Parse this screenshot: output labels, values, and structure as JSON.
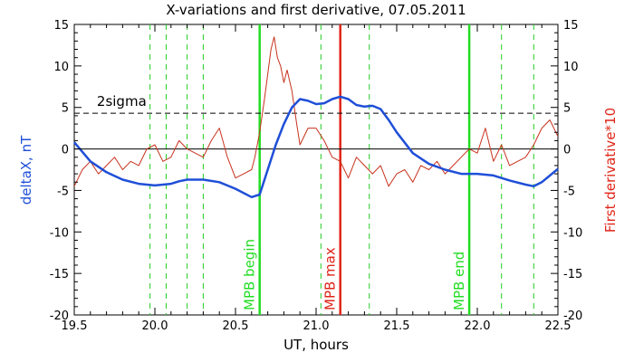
{
  "chart_data": {
    "type": "line",
    "title": "X-variations and first derivative, 07.05.2011",
    "xlabel": "UT, hours",
    "ylabel_left": "deltaX, nT",
    "ylabel_right": "First derivative*10",
    "xlim": [
      19.5,
      22.5
    ],
    "ylim": [
      -20,
      15
    ],
    "x_ticks": [
      "19.5",
      "20.0",
      "20.5",
      "21.0",
      "21.5",
      "22.0",
      "22.5"
    ],
    "y_ticks_left": [
      "15",
      "10",
      "5",
      "0",
      "-5",
      "-10",
      "-15",
      "-20"
    ],
    "y_ticks_right": [
      "15",
      "10",
      "5",
      "0",
      "-5",
      "-10",
      "-15",
      "-20"
    ],
    "colors": {
      "deltaX": "#1f4fd8",
      "derivative": "#c8321e",
      "mpb_boundary": "#22dd22",
      "mpb_max": "#e02418",
      "secondary_lines": "#22cc22",
      "zero_line": "#000000",
      "sigma_line": "#000000",
      "left_axis_label": "#1f4fd8",
      "right_axis_label": "#e02418"
    },
    "horizontal_lines": {
      "zero": 0,
      "sigma": {
        "value": 4.3,
        "label": "2sigma"
      }
    },
    "vertical_lines_solid": [
      {
        "x": 20.65,
        "label": "MPB begin",
        "kind": "mpb_boundary"
      },
      {
        "x": 21.15,
        "label": "MPB max",
        "kind": "mpb_max"
      },
      {
        "x": 21.95,
        "label": "MPB end",
        "kind": "mpb_boundary"
      }
    ],
    "vertical_lines_dashed": [
      19.97,
      20.07,
      20.2,
      20.3,
      21.03,
      21.33,
      22.15,
      22.35
    ],
    "series": [
      {
        "key": "deltaX",
        "x": [
          19.5,
          19.6,
          19.7,
          19.8,
          19.9,
          20.0,
          20.1,
          20.15,
          20.2,
          20.3,
          20.4,
          20.5,
          20.6,
          20.65,
          20.7,
          20.75,
          20.8,
          20.85,
          20.9,
          20.95,
          21.0,
          21.05,
          21.1,
          21.15,
          21.2,
          21.25,
          21.3,
          21.35,
          21.4,
          21.45,
          21.5,
          21.6,
          21.7,
          21.8,
          21.9,
          22.0,
          22.1,
          22.2,
          22.3,
          22.35,
          22.4,
          22.5
        ],
        "values": [
          0.8,
          -1.5,
          -2.8,
          -3.7,
          -4.2,
          -4.4,
          -4.2,
          -3.9,
          -3.7,
          -3.7,
          -4.0,
          -4.8,
          -5.8,
          -5.5,
          -2.5,
          0.5,
          3.0,
          5.0,
          6.0,
          5.8,
          5.4,
          5.5,
          6.0,
          6.3,
          6.0,
          5.3,
          5.1,
          5.2,
          4.8,
          3.5,
          2.0,
          -0.5,
          -1.8,
          -2.5,
          -3.0,
          -3.0,
          -3.2,
          -3.8,
          -4.3,
          -4.5,
          -4.0,
          -2.4
        ]
      },
      {
        "key": "derivative",
        "x": [
          19.5,
          19.55,
          19.6,
          19.65,
          19.7,
          19.75,
          19.8,
          19.85,
          19.9,
          19.95,
          20.0,
          20.05,
          20.1,
          20.15,
          20.2,
          20.25,
          20.3,
          20.35,
          20.4,
          20.45,
          20.5,
          20.55,
          20.6,
          20.62,
          20.65,
          20.68,
          20.7,
          20.72,
          20.74,
          20.76,
          20.78,
          20.8,
          20.82,
          20.85,
          20.88,
          20.9,
          20.95,
          21.0,
          21.05,
          21.1,
          21.15,
          21.2,
          21.25,
          21.3,
          21.35,
          21.4,
          21.45,
          21.5,
          21.55,
          21.6,
          21.65,
          21.7,
          21.75,
          21.8,
          21.85,
          21.9,
          21.95,
          22.0,
          22.05,
          22.1,
          22.15,
          22.2,
          22.25,
          22.3,
          22.35,
          22.4,
          22.45,
          22.5
        ],
        "values": [
          -4.5,
          -2.5,
          -1.5,
          -3.0,
          -2.0,
          -1.0,
          -2.5,
          -1.5,
          -2.0,
          0.0,
          0.5,
          -1.5,
          -1.0,
          1.0,
          0.0,
          -0.5,
          -1.0,
          1.0,
          2.5,
          -1.0,
          -3.5,
          -3.0,
          -2.5,
          -1.0,
          2.0,
          6.0,
          9.0,
          12.0,
          13.5,
          11.0,
          10.0,
          8.0,
          9.5,
          7.0,
          3.0,
          0.5,
          2.5,
          2.5,
          1.0,
          -1.0,
          -1.5,
          -3.5,
          -1.0,
          -2.0,
          -3.0,
          -2.0,
          -4.5,
          -3.0,
          -2.5,
          -4.0,
          -2.0,
          -2.5,
          -1.5,
          -3.0,
          -2.0,
          -1.0,
          0.0,
          -0.5,
          2.5,
          -1.5,
          0.5,
          -2.0,
          -1.5,
          -1.0,
          0.5,
          2.5,
          3.5,
          1.5
        ]
      }
    ]
  }
}
